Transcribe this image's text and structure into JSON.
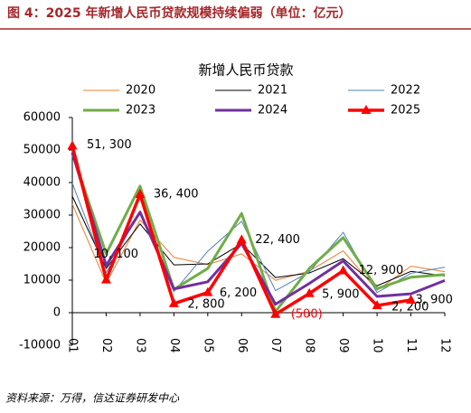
{
  "header": {
    "title": "图 4：2025 年新增人民币贷款规模持续偏弱（单位：亿元）"
  },
  "chart_data": {
    "type": "line",
    "title": "新增人民币贷款",
    "categories": [
      "01",
      "02",
      "03",
      "04",
      "05",
      "06",
      "07",
      "08",
      "09",
      "10",
      "11",
      "12"
    ],
    "ylim": [
      -10000,
      60000
    ],
    "yticks": [
      -10000,
      0,
      10000,
      20000,
      30000,
      40000,
      50000,
      60000
    ],
    "series": [
      {
        "name": "2020",
        "color": "#ed7d31",
        "values": [
          33400,
          9057,
          28500,
          17000,
          14800,
          18100,
          9927,
          12800,
          19000,
          6898,
          14300,
          12600
        ]
      },
      {
        "name": "2021",
        "color": "#000000",
        "values": [
          35800,
          13600,
          27300,
          14700,
          15000,
          21200,
          10800,
          12200,
          16600,
          8262,
          12700,
          11300
        ]
      },
      {
        "name": "2022",
        "color": "#4f81bd",
        "values": [
          39800,
          12300,
          31300,
          6454,
          18900,
          28100,
          6790,
          12500,
          24700,
          6152,
          12100,
          14000
        ]
      },
      {
        "name": "2023",
        "color": "#70ad47",
        "values": [
          49000,
          18100,
          38900,
          7188,
          13600,
          30500,
          345,
          13600,
          23100,
          7384,
          10900,
          11700
        ]
      },
      {
        "name": "2024",
        "color": "#7030a0",
        "values": [
          49200,
          14500,
          30900,
          7300,
          9500,
          21300,
          2600,
          9000,
          15900,
          5000,
          5800,
          9900
        ]
      },
      {
        "name": "2025",
        "color": "#ff0000",
        "values": [
          51300,
          10100,
          36400,
          2800,
          6200,
          22400,
          -500,
          5900,
          12900,
          2200,
          3900,
          null
        ],
        "value_labels": [
          "51, 300",
          "10, 100",
          "36, 400",
          "2, 800",
          "6, 200",
          "22, 400",
          "(500)",
          "5, 900",
          "12, 900",
          "2, 200",
          "3, 900",
          null
        ]
      }
    ]
  },
  "source": "资料来源：万得，信达证券研发中心"
}
